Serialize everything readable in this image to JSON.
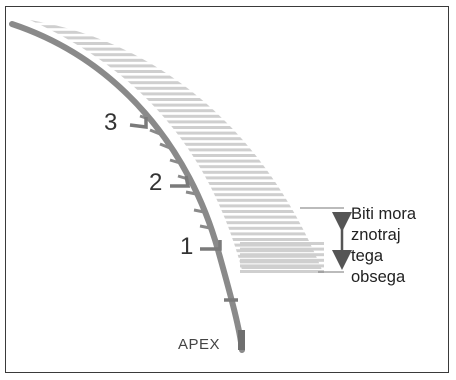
{
  "markers": {
    "three": "3",
    "two": "2",
    "one": "1",
    "apex": "APEX"
  },
  "annotation": {
    "lines": [
      "Biti mora",
      "znotraj",
      "tega",
      "obsega"
    ]
  },
  "colors": {
    "stripe": "#cfcfcf",
    "canal_wall": "#8a8a8a",
    "apex_marker": "#6f6f6f",
    "arrow": "#555555",
    "text": "#222222"
  }
}
